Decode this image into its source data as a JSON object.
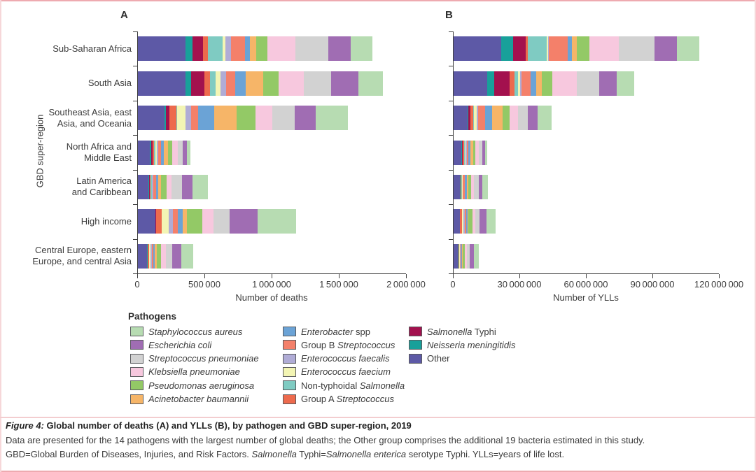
{
  "figure": {
    "panel_a": "A",
    "panel_b": "B",
    "y_axis_title": "GBD super-region",
    "regions": [
      [
        "Sub-Saharan Africa"
      ],
      [
        "South Asia"
      ],
      [
        "Southeast Asia, east",
        "Asia, and Oceania"
      ],
      [
        "North Africa and",
        "Middle East"
      ],
      [
        "Latin America",
        "and Caribbean"
      ],
      [
        "High income"
      ],
      [
        "Central Europe, eastern",
        "Europe, and central Asia"
      ]
    ]
  },
  "chart_data": [
    {
      "type": "bar",
      "orientation": "horizontal",
      "stacked": true,
      "panel": "A",
      "xlabel": "Number of deaths",
      "xlim": [
        0,
        2000000
      ],
      "xticks": [
        0,
        500000,
        1000000,
        1500000,
        2000000
      ],
      "xtick_labels": [
        "0",
        "500 000",
        "1 000 000",
        "1 500 000",
        "2 000 000"
      ],
      "categories": [
        "Sub-Saharan Africa",
        "South Asia",
        "Southeast Asia, east Asia, and Oceania",
        "North Africa and Middle East",
        "Latin America and Caribbean",
        "High income",
        "Central Europe, eastern Europe, and central Asia"
      ],
      "series": [
        {
          "name": "Other",
          "color": "#5d59a6",
          "values": [
            355000,
            356000,
            200000,
            90000,
            78000,
            130000,
            70000
          ]
        },
        {
          "name": "Neisseria meningitidis",
          "color": "#18a09a",
          "values": [
            52000,
            43000,
            10000,
            8000,
            5000,
            3000,
            2000
          ]
        },
        {
          "name": "Salmonella Typhi",
          "color": "#a3114e",
          "values": [
            78000,
            95000,
            26000,
            10000,
            5000,
            2000,
            2000
          ]
        },
        {
          "name": "Group A Streptococcus",
          "color": "#ed6a4d",
          "values": [
            36000,
            43000,
            50000,
            13000,
            8000,
            40000,
            8000
          ]
        },
        {
          "name": "Non-typhoidal Salmonella",
          "color": "#7fcbc2",
          "values": [
            110000,
            43000,
            8000,
            10000,
            6000,
            3000,
            3000
          ]
        },
        {
          "name": "Enterococcus faecium",
          "color": "#f3f5b4",
          "values": [
            20000,
            35000,
            61000,
            8000,
            5000,
            50000,
            8000
          ]
        },
        {
          "name": "Enterococcus faecalis",
          "color": "#b0acd6",
          "values": [
            42000,
            43000,
            43000,
            13000,
            6000,
            35000,
            10000
          ]
        },
        {
          "name": "Group B Streptococcus",
          "color": "#f4806a",
          "values": [
            104000,
            69000,
            52000,
            21000,
            23000,
            35000,
            12000
          ]
        },
        {
          "name": "Enterobacter spp",
          "color": "#6ba3d6",
          "values": [
            36000,
            78000,
            121000,
            18000,
            17000,
            35000,
            10000
          ]
        },
        {
          "name": "Acinetobacter baumannii",
          "color": "#f6b568",
          "values": [
            52000,
            130000,
            165000,
            34000,
            21000,
            33000,
            17000
          ]
        },
        {
          "name": "Pseudomonas aeruginosa",
          "color": "#93c966",
          "values": [
            83000,
            113000,
            139000,
            29000,
            38000,
            113000,
            30000
          ]
        },
        {
          "name": "Klebsiella pneumoniae",
          "color": "#f7c8de",
          "values": [
            208000,
            191000,
            125000,
            42000,
            40000,
            87000,
            38000
          ]
        },
        {
          "name": "Streptococcus pneumoniae",
          "color": "#d2d2d2",
          "values": [
            245000,
            200000,
            170000,
            39000,
            78000,
            120000,
            45000
          ]
        },
        {
          "name": "Escherichia coli",
          "color": "#a06db3",
          "values": [
            167000,
            208000,
            156000,
            29000,
            78000,
            208000,
            69000
          ]
        },
        {
          "name": "Staphylococcus aureus",
          "color": "#b7dcb2",
          "values": [
            161000,
            182000,
            243000,
            26000,
            113000,
            286000,
            87000
          ]
        }
      ]
    },
    {
      "type": "bar",
      "orientation": "horizontal",
      "stacked": true,
      "panel": "B",
      "xlabel": "Number of YLLs",
      "xlim": [
        0,
        120000000
      ],
      "xticks": [
        0,
        30000000,
        60000000,
        90000000,
        120000000
      ],
      "xtick_labels": [
        "0",
        "30 000 000",
        "60 000 000",
        "90 000 000",
        "120 000 000"
      ],
      "categories": [
        "Sub-Saharan Africa",
        "South Asia",
        "Southeast Asia, east Asia, and Oceania",
        "North Africa and Middle East",
        "Latin America and Caribbean",
        "High income",
        "Central Europe, eastern Europe, and central Asia"
      ],
      "series": [
        {
          "name": "Other",
          "color": "#5d59a6",
          "values": [
            21600000,
            15300000,
            6300000,
            3500000,
            2900000,
            2800000,
            2000000
          ]
        },
        {
          "name": "Neisseria meningitidis",
          "color": "#18a09a",
          "values": [
            5300000,
            3200000,
            400000,
            300000,
            200000,
            100000,
            100000
          ]
        },
        {
          "name": "Salmonella Typhi",
          "color": "#a3114e",
          "values": [
            5800000,
            6900000,
            900000,
            400000,
            200000,
            100000,
            50000
          ]
        },
        {
          "name": "Group A Streptococcus",
          "color": "#ed6a4d",
          "values": [
            1000000,
            2100000,
            1300000,
            500000,
            300000,
            700000,
            250000
          ]
        },
        {
          "name": "Non-typhoidal Salmonella",
          "color": "#7fcbc2",
          "values": [
            8400000,
            1600000,
            300000,
            400000,
            200000,
            100000,
            100000
          ]
        },
        {
          "name": "Enterococcus faecium",
          "color": "#f3f5b4",
          "values": [
            500000,
            1000000,
            1300000,
            300000,
            200000,
            700000,
            250000
          ]
        },
        {
          "name": "Enterococcus faecalis",
          "color": "#b0acd6",
          "values": [
            500000,
            700000,
            500000,
            500000,
            200000,
            500000,
            300000
          ]
        },
        {
          "name": "Group B Streptococcus",
          "color": "#f4806a",
          "values": [
            8400000,
            4000000,
            3200000,
            900000,
            1000000,
            600000,
            400000
          ]
        },
        {
          "name": "Enterobacter spp",
          "color": "#6ba3d6",
          "values": [
            2100000,
            2600000,
            3200000,
            700000,
            700000,
            600000,
            300000
          ]
        },
        {
          "name": "Acinetobacter baumannii",
          "color": "#f6b568",
          "values": [
            2100000,
            2600000,
            4700000,
            1300000,
            800000,
            500000,
            500000
          ]
        },
        {
          "name": "Pseudomonas aeruginosa",
          "color": "#93c966",
          "values": [
            5800000,
            4700000,
            3200000,
            1100000,
            1100000,
            1700000,
            850000
          ]
        },
        {
          "name": "Klebsiella pneumoniae",
          "color": "#f7c8de",
          "values": [
            13200000,
            11100000,
            3700000,
            1600000,
            1400000,
            1400000,
            1050000
          ]
        },
        {
          "name": "Streptococcus pneumoniae",
          "color": "#d2d2d2",
          "values": [
            16300000,
            10000000,
            4700000,
            1500000,
            2200000,
            1900000,
            1200000
          ]
        },
        {
          "name": "Escherichia coli",
          "color": "#a06db3",
          "values": [
            10000000,
            7900000,
            4200000,
            1100000,
            1700000,
            3100000,
            1800000
          ]
        },
        {
          "name": "Staphylococcus aureus",
          "color": "#b7dcb2",
          "values": [
            10000000,
            7900000,
            6300000,
            1000000,
            2300000,
            4300000,
            2200000
          ]
        }
      ]
    }
  ],
  "legend": {
    "title": "Pathogens",
    "columns": [
      [
        {
          "color": "#b7dcb2",
          "segments": [
            {
              "t": "Staphylococcus aureus",
              "i": true
            }
          ]
        },
        {
          "color": "#a06db3",
          "segments": [
            {
              "t": "Escherichia coli",
              "i": true
            }
          ]
        },
        {
          "color": "#d2d2d2",
          "segments": [
            {
              "t": "Streptococcus pneumoniae",
              "i": true
            }
          ]
        },
        {
          "color": "#f7c8de",
          "segments": [
            {
              "t": "Klebsiella pneumoniae",
              "i": true
            }
          ]
        },
        {
          "color": "#93c966",
          "segments": [
            {
              "t": "Pseudomonas aeruginosa",
              "i": true
            }
          ]
        },
        {
          "color": "#f6b568",
          "segments": [
            {
              "t": "Acinetobacter baumannii",
              "i": true
            }
          ]
        }
      ],
      [
        {
          "color": "#6ba3d6",
          "segments": [
            {
              "t": "Enterobacter",
              "i": true
            },
            {
              "t": " spp",
              "i": false
            }
          ]
        },
        {
          "color": "#f4806a",
          "segments": [
            {
              "t": "Group B ",
              "i": false
            },
            {
              "t": "Streptococcus",
              "i": true
            }
          ]
        },
        {
          "color": "#b0acd6",
          "segments": [
            {
              "t": "Enterococcus faecalis",
              "i": true
            }
          ]
        },
        {
          "color": "#f3f5b4",
          "segments": [
            {
              "t": "Enterococcus faecium",
              "i": true
            }
          ]
        },
        {
          "color": "#7fcbc2",
          "segments": [
            {
              "t": "Non-typhoidal ",
              "i": false
            },
            {
              "t": "Salmonella",
              "i": true
            }
          ]
        },
        {
          "color": "#ed6a4d",
          "segments": [
            {
              "t": "Group A ",
              "i": false
            },
            {
              "t": "Streptococcus",
              "i": true
            }
          ]
        }
      ],
      [
        {
          "color": "#a3114e",
          "segments": [
            {
              "t": "Salmonella",
              "i": true
            },
            {
              "t": " Typhi",
              "i": false
            }
          ]
        },
        {
          "color": "#18a09a",
          "segments": [
            {
              "t": "Neisseria meningitidis",
              "i": true
            }
          ]
        },
        {
          "color": "#5d59a6",
          "segments": [
            {
              "t": "Other",
              "i": false
            }
          ]
        }
      ]
    ]
  },
  "caption": {
    "title_label": "Figure 4:",
    "title_text": " Global number of deaths (A) and YLLs (B), by pathogen and GBD super-region, 2019",
    "line2": "Data are presented for the 14 pathogens with the largest number of global deaths; the Other group comprises the additional 19 bacteria estimated in this study.",
    "line3_segments": [
      {
        "t": "GBD=Global Burden of Diseases, Injuries, and Risk Factors. ",
        "i": false
      },
      {
        "t": "Salmonella",
        "i": true
      },
      {
        "t": " Typhi=",
        "i": false
      },
      {
        "t": "Salmonella enterica",
        "i": true
      },
      {
        "t": " serotype Typhi. YLLs=years of life lost.",
        "i": false
      }
    ]
  },
  "colors": {
    "frame_top_bottom": "#eeaab0",
    "frame_sides": "#f6d7d9",
    "axis": "#3f3f3f",
    "divider": "#f3cdcf"
  }
}
